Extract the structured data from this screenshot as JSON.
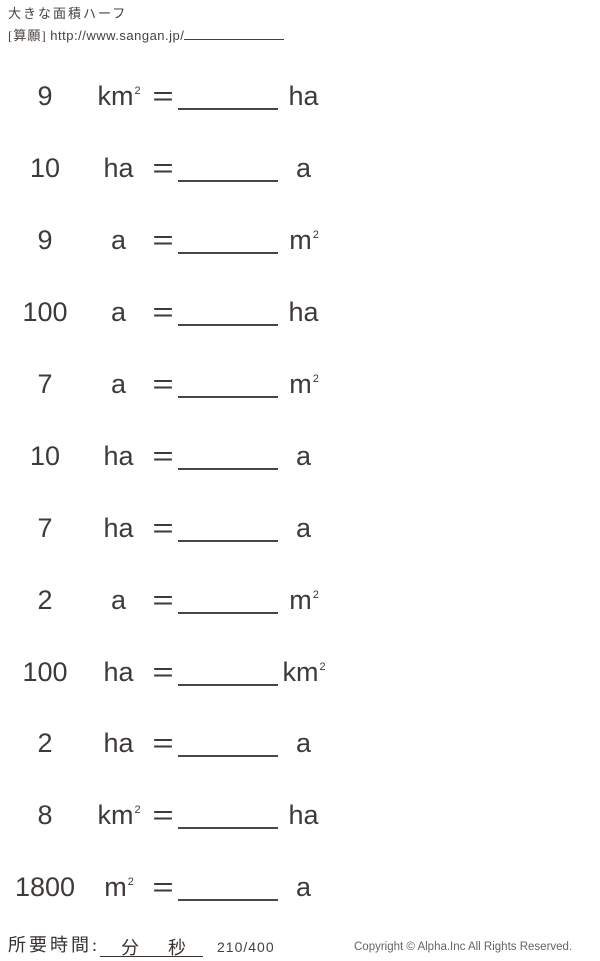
{
  "header": {
    "title": "大きな面積ハーフ",
    "source_label": "[算願]",
    "source_url": "http://www.sangan.jp/"
  },
  "equals_sign": "=",
  "rows": [
    {
      "value": "9",
      "unit_base": "km",
      "unit_sup": "2",
      "answer_base": "ha",
      "answer_sup": ""
    },
    {
      "value": "10",
      "unit_base": "ha",
      "unit_sup": "",
      "answer_base": "a",
      "answer_sup": ""
    },
    {
      "value": "9",
      "unit_base": "a",
      "unit_sup": "",
      "answer_base": "m",
      "answer_sup": "2"
    },
    {
      "value": "100",
      "unit_base": "a",
      "unit_sup": "",
      "answer_base": "ha",
      "answer_sup": ""
    },
    {
      "value": "7",
      "unit_base": "a",
      "unit_sup": "",
      "answer_base": "m",
      "answer_sup": "2"
    },
    {
      "value": "10",
      "unit_base": "ha",
      "unit_sup": "",
      "answer_base": "a",
      "answer_sup": ""
    },
    {
      "value": "7",
      "unit_base": "ha",
      "unit_sup": "",
      "answer_base": "a",
      "answer_sup": ""
    },
    {
      "value": "2",
      "unit_base": "a",
      "unit_sup": "",
      "answer_base": "m",
      "answer_sup": "2"
    },
    {
      "value": "100",
      "unit_base": "ha",
      "unit_sup": "",
      "answer_base": "km",
      "answer_sup": "2"
    },
    {
      "value": "2",
      "unit_base": "ha",
      "unit_sup": "",
      "answer_base": "a",
      "answer_sup": ""
    },
    {
      "value": "8",
      "unit_base": "km",
      "unit_sup": "2",
      "answer_base": "ha",
      "answer_sup": ""
    },
    {
      "value": "1800",
      "unit_base": "m",
      "unit_sup": "2",
      "answer_base": "a",
      "answer_sup": ""
    }
  ],
  "footer": {
    "time_label": "所要時間:",
    "minutes_label": "分",
    "seconds_label": "秒",
    "page_indicator": "210/400",
    "copyright": "Copyright © Alpha.Inc All Rights Reserved."
  }
}
